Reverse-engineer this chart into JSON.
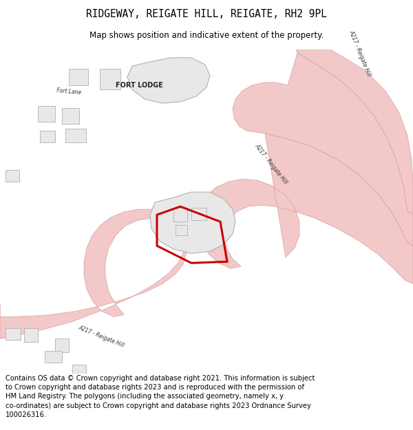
{
  "title": "RIDGEWAY, REIGATE HILL, REIGATE, RH2 9PL",
  "subtitle": "Map shows position and indicative extent of the property.",
  "footer": "Contains OS data © Crown copyright and database right 2021. This information is subject\nto Crown copyright and database rights 2023 and is reproduced with the permission of\nHM Land Registry. The polygons (including the associated geometry, namely x, y\nco-ordinates) are subject to Crown copyright and database rights 2023 Ordnance Survey\n100026316.",
  "green": "#5e9e60",
  "white": "#ffffff",
  "pink": "#f2c8c8",
  "pink_edge": "#d8a0a0",
  "bldg_fill": "#e8e8e8",
  "bldg_edge": "#b0b0b0",
  "red": "#cc0000",
  "text_dark": "#333333",
  "map_xlim": [
    0,
    600
  ],
  "map_ylim": [
    470,
    0
  ]
}
